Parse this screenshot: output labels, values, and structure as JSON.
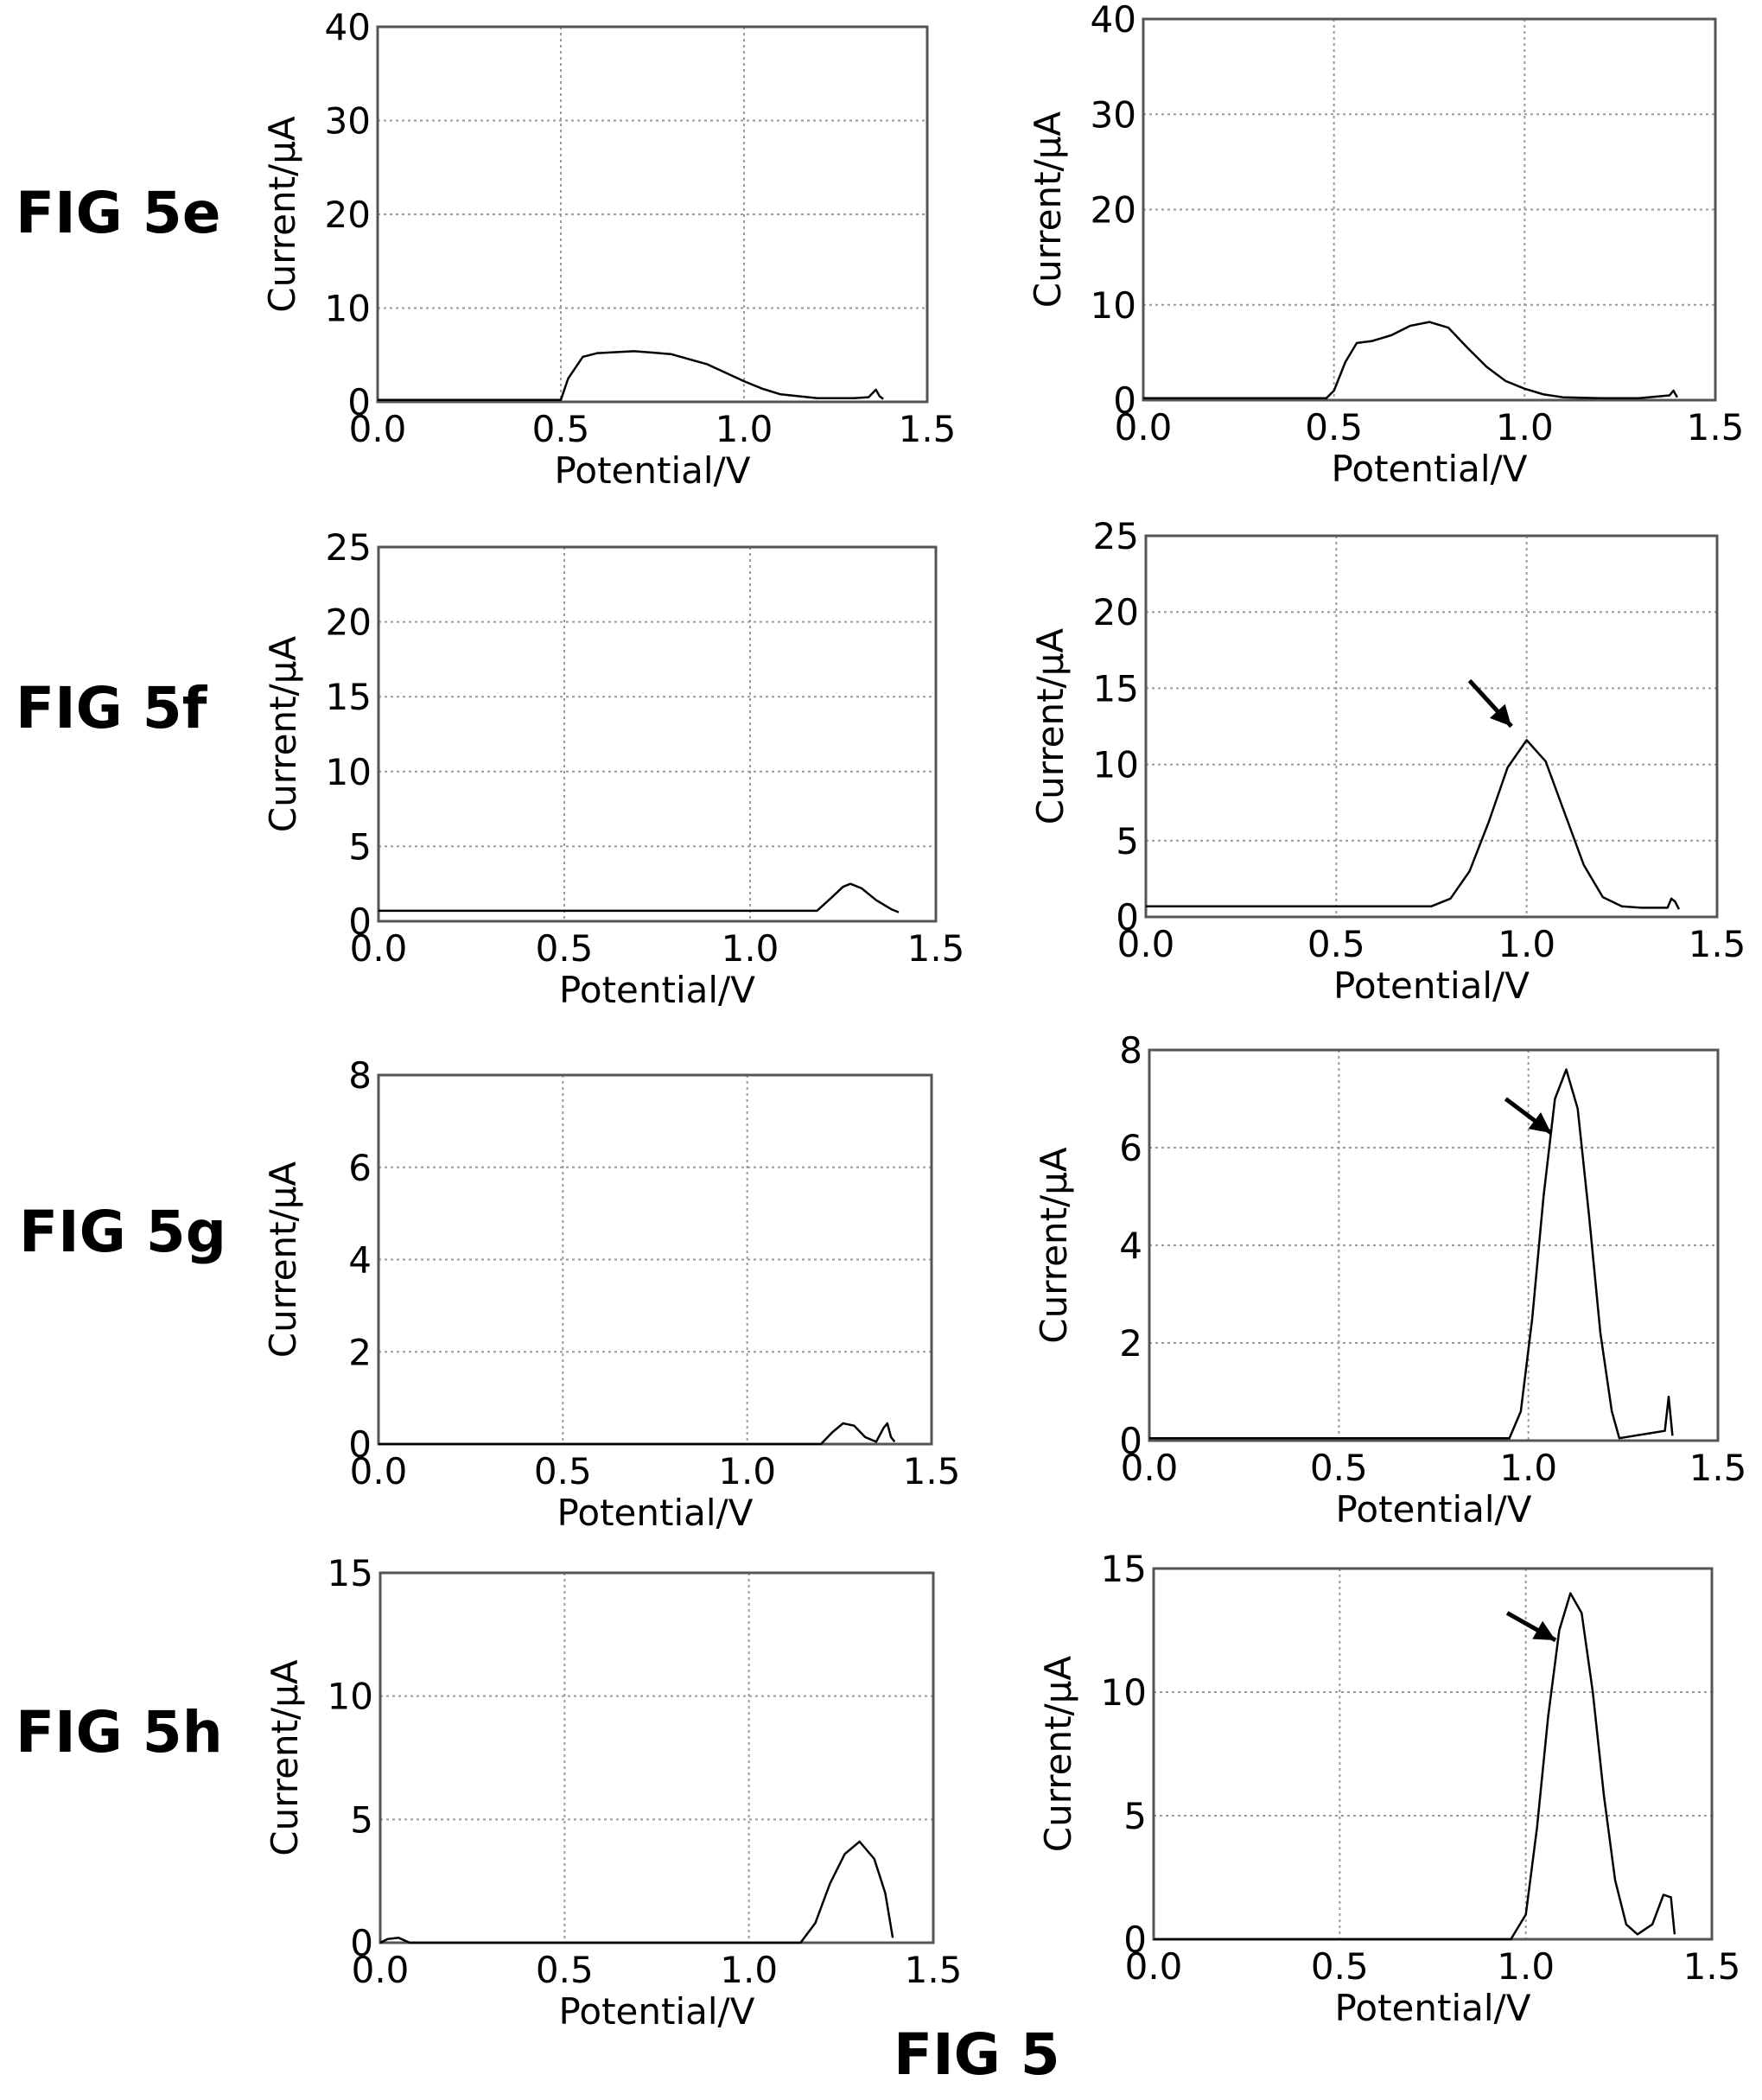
{
  "figure": {
    "caption": "FIG 5",
    "row_labels": [
      "FIG 5e",
      "FIG 5f",
      "FIG 5g",
      "FIG 5h"
    ]
  },
  "colors": {
    "line": "#000000",
    "grid": "#9a9a9a",
    "frame": "#555555",
    "background": "#ffffff"
  },
  "chart_data": [
    {
      "id": "5e-left",
      "type": "line",
      "title": "",
      "xlabel": "Potential/V",
      "ylabel": "Current/μA",
      "xlim": [
        0.0,
        1.5
      ],
      "ylim": [
        0,
        40
      ],
      "xticks": [
        "0.0",
        "0.5",
        "1.0",
        "1.5"
      ],
      "yticks": [
        "0",
        "10",
        "20",
        "30",
        "40"
      ],
      "grid": true,
      "arrow": null,
      "series": [
        {
          "x": [
            0.0,
            0.5,
            0.52,
            0.56,
            0.6,
            0.7,
            0.8,
            0.9,
            1.0,
            1.05,
            1.1,
            1.2,
            1.3,
            1.34,
            1.36,
            1.37,
            1.38
          ],
          "y": [
            0.2,
            0.2,
            2.5,
            4.8,
            5.2,
            5.4,
            5.1,
            4.0,
            2.2,
            1.4,
            0.8,
            0.4,
            0.4,
            0.5,
            1.3,
            0.6,
            0.3
          ]
        }
      ]
    },
    {
      "id": "5e-right",
      "type": "line",
      "title": "",
      "xlabel": "Potential/V",
      "ylabel": "Current/μA",
      "xlim": [
        0.0,
        1.5
      ],
      "ylim": [
        0,
        40
      ],
      "xticks": [
        "0.0",
        "0.5",
        "1.0",
        "1.5"
      ],
      "yticks": [
        "0",
        "10",
        "20",
        "30",
        "40"
      ],
      "grid": true,
      "arrow": null,
      "series": [
        {
          "x": [
            0.0,
            0.48,
            0.5,
            0.53,
            0.56,
            0.6,
            0.65,
            0.7,
            0.75,
            0.8,
            0.85,
            0.9,
            0.95,
            1.0,
            1.05,
            1.1,
            1.2,
            1.3,
            1.38,
            1.39,
            1.4
          ],
          "y": [
            0.2,
            0.2,
            1.0,
            4.0,
            6.0,
            6.2,
            6.8,
            7.8,
            8.2,
            7.6,
            5.5,
            3.5,
            2.0,
            1.2,
            0.6,
            0.3,
            0.2,
            0.2,
            0.5,
            1.0,
            0.3
          ]
        }
      ]
    },
    {
      "id": "5f-left",
      "type": "line",
      "title": "",
      "xlabel": "Potential/V",
      "ylabel": "Current/μA",
      "xlim": [
        0.0,
        1.5
      ],
      "ylim": [
        0,
        25
      ],
      "xticks": [
        "0.0",
        "0.5",
        "1.0",
        "1.5"
      ],
      "yticks": [
        "0",
        "5",
        "10",
        "15",
        "20",
        "25"
      ],
      "grid": true,
      "arrow": null,
      "series": [
        {
          "x": [
            0.0,
            1.18,
            1.22,
            1.25,
            1.27,
            1.3,
            1.34,
            1.38,
            1.4
          ],
          "y": [
            0.7,
            0.7,
            1.6,
            2.3,
            2.5,
            2.2,
            1.4,
            0.8,
            0.6
          ]
        }
      ]
    },
    {
      "id": "5f-right",
      "type": "line",
      "title": "",
      "xlabel": "Potential/V",
      "ylabel": "Current/μA",
      "xlim": [
        0.0,
        1.5
      ],
      "ylim": [
        0,
        25
      ],
      "xticks": [
        "0.0",
        "0.5",
        "1.0",
        "1.5"
      ],
      "yticks": [
        "0",
        "5",
        "10",
        "15",
        "20",
        "25"
      ],
      "grid": true,
      "arrow": {
        "from_x": 0.85,
        "from_y": 15.5,
        "to_x": 0.96,
        "to_y": 12.5
      },
      "series": [
        {
          "x": [
            0.0,
            0.75,
            0.8,
            0.85,
            0.9,
            0.95,
            1.0,
            1.05,
            1.1,
            1.15,
            1.2,
            1.25,
            1.3,
            1.37,
            1.38,
            1.39,
            1.4
          ],
          "y": [
            0.7,
            0.7,
            1.2,
            3.0,
            6.2,
            9.8,
            11.6,
            10.2,
            6.8,
            3.4,
            1.3,
            0.7,
            0.6,
            0.6,
            1.2,
            1.0,
            0.5
          ]
        }
      ]
    },
    {
      "id": "5g-left",
      "type": "line",
      "title": "",
      "xlabel": "Potential/V",
      "ylabel": "Current/μA",
      "xlim": [
        0.0,
        1.5
      ],
      "ylim": [
        0,
        8
      ],
      "xticks": [
        "0.0",
        "0.5",
        "1.0",
        "1.5"
      ],
      "yticks": [
        "0",
        "2",
        "4",
        "6",
        "8"
      ],
      "grid": true,
      "arrow": null,
      "series": [
        {
          "x": [
            0.0,
            1.2,
            1.23,
            1.26,
            1.29,
            1.32,
            1.35,
            1.37,
            1.38,
            1.39,
            1.4
          ],
          "y": [
            0.0,
            0.0,
            0.25,
            0.45,
            0.4,
            0.15,
            0.05,
            0.35,
            0.45,
            0.15,
            0.05
          ]
        }
      ]
    },
    {
      "id": "5g-right",
      "type": "line",
      "title": "",
      "xlabel": "Potential/V",
      "ylabel": "Current/μA",
      "xlim": [
        0.0,
        1.5
      ],
      "ylim": [
        0,
        8
      ],
      "xticks": [
        "0.0",
        "0.5",
        "1.0",
        "1.5"
      ],
      "yticks": [
        "0",
        "2",
        "4",
        "6",
        "8"
      ],
      "grid": true,
      "arrow": {
        "from_x": 0.94,
        "from_y": 7.0,
        "to_x": 1.06,
        "to_y": 6.3
      },
      "series": [
        {
          "x": [
            0.0,
            0.95,
            0.98,
            1.01,
            1.04,
            1.07,
            1.1,
            1.13,
            1.16,
            1.19,
            1.22,
            1.24,
            1.36,
            1.37,
            1.38
          ],
          "y": [
            0.05,
            0.05,
            0.6,
            2.5,
            5.0,
            7.0,
            7.6,
            6.8,
            4.6,
            2.2,
            0.6,
            0.05,
            0.2,
            0.9,
            0.1
          ]
        }
      ]
    },
    {
      "id": "5h-left",
      "type": "line",
      "title": "",
      "xlabel": "Potential/V",
      "ylabel": "Current/μA",
      "xlim": [
        0.0,
        1.5
      ],
      "ylim": [
        0,
        15
      ],
      "xticks": [
        "0.0",
        "0.5",
        "1.0",
        "1.5"
      ],
      "yticks": [
        "0",
        "5",
        "10",
        "15"
      ],
      "grid": true,
      "arrow": null,
      "series": [
        {
          "x": [
            0.0,
            0.02,
            0.05,
            0.08,
            1.14,
            1.18,
            1.22,
            1.26,
            1.3,
            1.34,
            1.37,
            1.39
          ],
          "y": [
            0.0,
            0.15,
            0.2,
            0.0,
            0.0,
            0.8,
            2.4,
            3.6,
            4.1,
            3.4,
            2.0,
            0.2
          ]
        }
      ]
    },
    {
      "id": "5h-right",
      "type": "line",
      "title": "",
      "xlabel": "Potential/V",
      "ylabel": "Current/μA",
      "xlim": [
        0.0,
        1.5
      ],
      "ylim": [
        0,
        15
      ],
      "xticks": [
        "0.0",
        "0.5",
        "1.0",
        "1.5"
      ],
      "yticks": [
        "0",
        "5",
        "10",
        "15"
      ],
      "grid": true,
      "arrow": {
        "from_x": 0.95,
        "from_y": 13.2,
        "to_x": 1.08,
        "to_y": 12.1
      },
      "series": [
        {
          "x": [
            0.0,
            0.96,
            1.0,
            1.03,
            1.06,
            1.09,
            1.12,
            1.15,
            1.18,
            1.21,
            1.24,
            1.27,
            1.3,
            1.34,
            1.37,
            1.39,
            1.4
          ],
          "y": [
            0.0,
            0.0,
            1.0,
            4.5,
            9.0,
            12.5,
            14.0,
            13.2,
            10.0,
            5.8,
            2.4,
            0.6,
            0.2,
            0.6,
            1.8,
            1.7,
            0.2
          ]
        }
      ]
    }
  ]
}
